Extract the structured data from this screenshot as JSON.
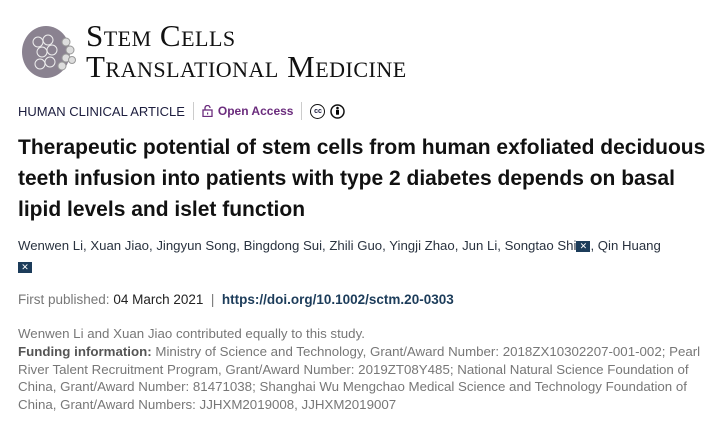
{
  "journal": {
    "name_line1": "Stem Cells",
    "name_line2": "Translational Medicine"
  },
  "meta": {
    "article_type": "HUMAN CLINICAL ARTICLE",
    "open_access": "Open Access",
    "cc_label": "cc"
  },
  "title": "Therapeutic potential of stem cells from human exfoliated deciduous teeth infusion into patients with type 2 diabetes depends on basal lipid levels and islet function",
  "authors": [
    "Wenwen Li",
    "Xuan Jiao",
    "Jingyun Song",
    "Bingdong Sui",
    "Zhili Guo",
    "Yingji Zhao",
    "Jun Li",
    "Songtao Shi",
    "Qin Huang"
  ],
  "published": {
    "label": "First published:",
    "date": "04 March 2021",
    "doi": "https://doi.org/10.1002/sctm.20-0303"
  },
  "notes": {
    "contribution": "Wenwen Li and Xuan Jiao contributed equally to this study.",
    "funding_label": "Funding information:",
    "funding_text": "Ministry of Science and Technology, Grant/Award Number: 2018ZX10302207-001-002; Pearl River Talent Recruitment Program, Grant/Award Number: 2019ZT08Y485; National Natural Science Foundation of China, Grant/Award Number: 81471038; Shanghai Wu Mengchao Medical Science and Technology Foundation of China, Grant/Award Numbers: JJHXM2019008, JJHXM2019007"
  },
  "colors": {
    "article_type": "#1c1d3e",
    "open_access": "#6b2c7d",
    "link": "#1c3c5a"
  }
}
